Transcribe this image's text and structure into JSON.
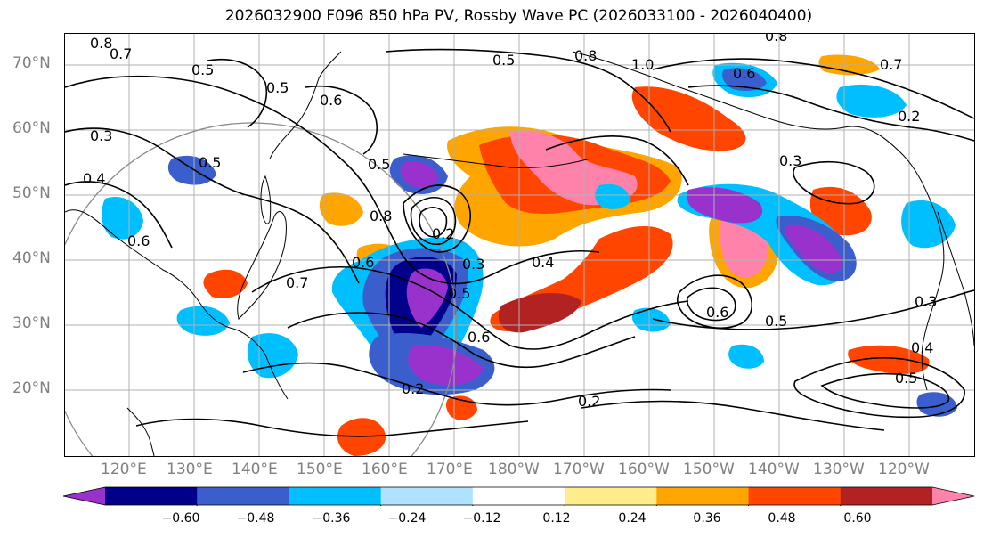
{
  "title": "2026032900 F096 850 hPa PV, Rossby Wave PC (2026033100 - 2026040400)",
  "lat_labels": [
    "70°N",
    "60°N",
    "50°N",
    "40°N",
    "30°N",
    "20°N"
  ],
  "lon_labels": [
    "120°E",
    "130°E",
    "140°E",
    "150°E",
    "160°E",
    "170°E",
    "180°W",
    "170°W",
    "160°W",
    "150°W",
    "140°W",
    "130°W",
    "120°W"
  ],
  "contour_labels": [
    "0.8",
    "0.7",
    "0.5",
    "0.8",
    "0.6",
    "0.5",
    "0.6",
    "0.8",
    "1.0",
    "0.6",
    "0.7",
    "0.3",
    "0.4",
    "0.5",
    "0.8",
    "0.5",
    "0.2",
    "0.6",
    "0.7",
    "0.3",
    "0.5",
    "0.4",
    "0.2",
    "0.6",
    "0.6",
    "0.5",
    "0.3",
    "0.4",
    "0.5",
    "0.2",
    "0.3",
    "0.5",
    "0.2"
  ],
  "colorbar": {
    "colors": [
      "#9932cc",
      "#00008b",
      "#3a5fcd",
      "#00bfff",
      "#b0e2ff",
      "#ffffff",
      "#ffec8b",
      "#ffa500",
      "#ff4500",
      "#b22222",
      "#ff82ab"
    ],
    "tick_labels": [
      "−0.60",
      "−0.48",
      "−0.36",
      "−0.24",
      "−0.12",
      "0.12",
      "0.24",
      "0.36",
      "0.48",
      "0.60"
    ]
  }
}
